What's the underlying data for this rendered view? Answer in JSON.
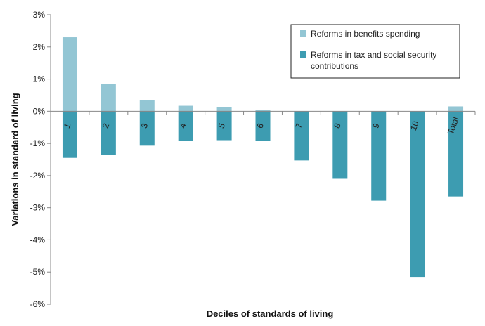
{
  "chart_data": {
    "type": "bar",
    "stacked": true,
    "xlabel": "Deciles of standards of living",
    "ylabel": "Variations in standard of living",
    "ylim": [
      -6,
      3
    ],
    "yticks": [
      3,
      2,
      1,
      0,
      -1,
      -2,
      -3,
      -4,
      -5,
      -6
    ],
    "ytick_labels": [
      "3%",
      "2%",
      "1%",
      "0%",
      "-1%",
      "-2%",
      "-3%",
      "-4%",
      "-5%",
      "-6%"
    ],
    "categories": [
      "1",
      "2",
      "3",
      "4",
      "5",
      "6",
      "7",
      "8",
      "9",
      "10",
      "Total"
    ],
    "series": [
      {
        "name": "Reforms in benefits spending",
        "color": "#93c6d4",
        "values": [
          2.3,
          0.85,
          0.35,
          0.17,
          0.12,
          0.05,
          0.0,
          0.0,
          0.0,
          0.0,
          0.15
        ]
      },
      {
        "name": "Reforms in tax and social security contributions",
        "color": "#3d9cb1",
        "values": [
          -1.45,
          -1.35,
          -1.07,
          -0.92,
          -0.9,
          -0.92,
          -1.53,
          -2.1,
          -2.78,
          -5.15,
          -2.65
        ]
      }
    ],
    "grid": false,
    "legend": "top-right",
    "legend_text_lines": [
      [
        "Reforms in benefits spending"
      ],
      [
        "Reforms in tax and social security",
        "contributions"
      ]
    ]
  }
}
